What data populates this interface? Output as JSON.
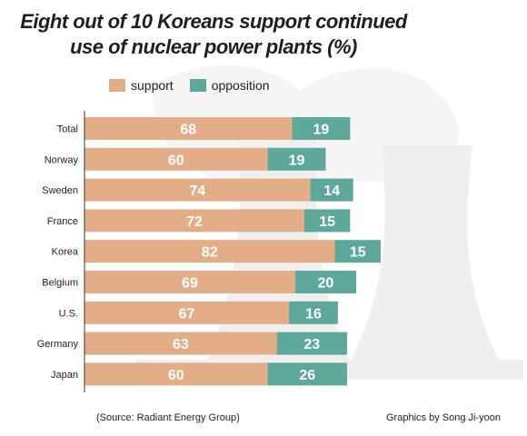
{
  "chart_data": {
    "type": "bar",
    "orientation": "horizontal",
    "stacked": true,
    "title": "Eight out of 10 Koreans support continued use of nuclear power plants (%)",
    "title_line1": "Eight out of 10 Koreans support continued",
    "title_line2": "use of nuclear power plants (%)",
    "categories": [
      "Total",
      "Norway",
      "Sweden",
      "France",
      "Korea",
      "Belgium",
      "U.S.",
      "Germany",
      "Japan"
    ],
    "series": [
      {
        "name": "support",
        "color": "#e3ad87",
        "values": [
          68,
          60,
          74,
          72,
          82,
          69,
          67,
          63,
          60
        ]
      },
      {
        "name": "opposition",
        "color": "#5ea79b",
        "values": [
          19,
          19,
          14,
          15,
          15,
          20,
          16,
          23,
          26
        ]
      }
    ],
    "xlim": [
      0,
      100
    ],
    "grid": false,
    "legend_position": "top-left"
  },
  "footer": {
    "source": "(Source: Radiant Energy Group)",
    "credit": "Graphics by Song Ji-yoon"
  },
  "decoration": {
    "background_icon": "nuclear-cooling-tower-icon",
    "background_color": "#efefef"
  }
}
